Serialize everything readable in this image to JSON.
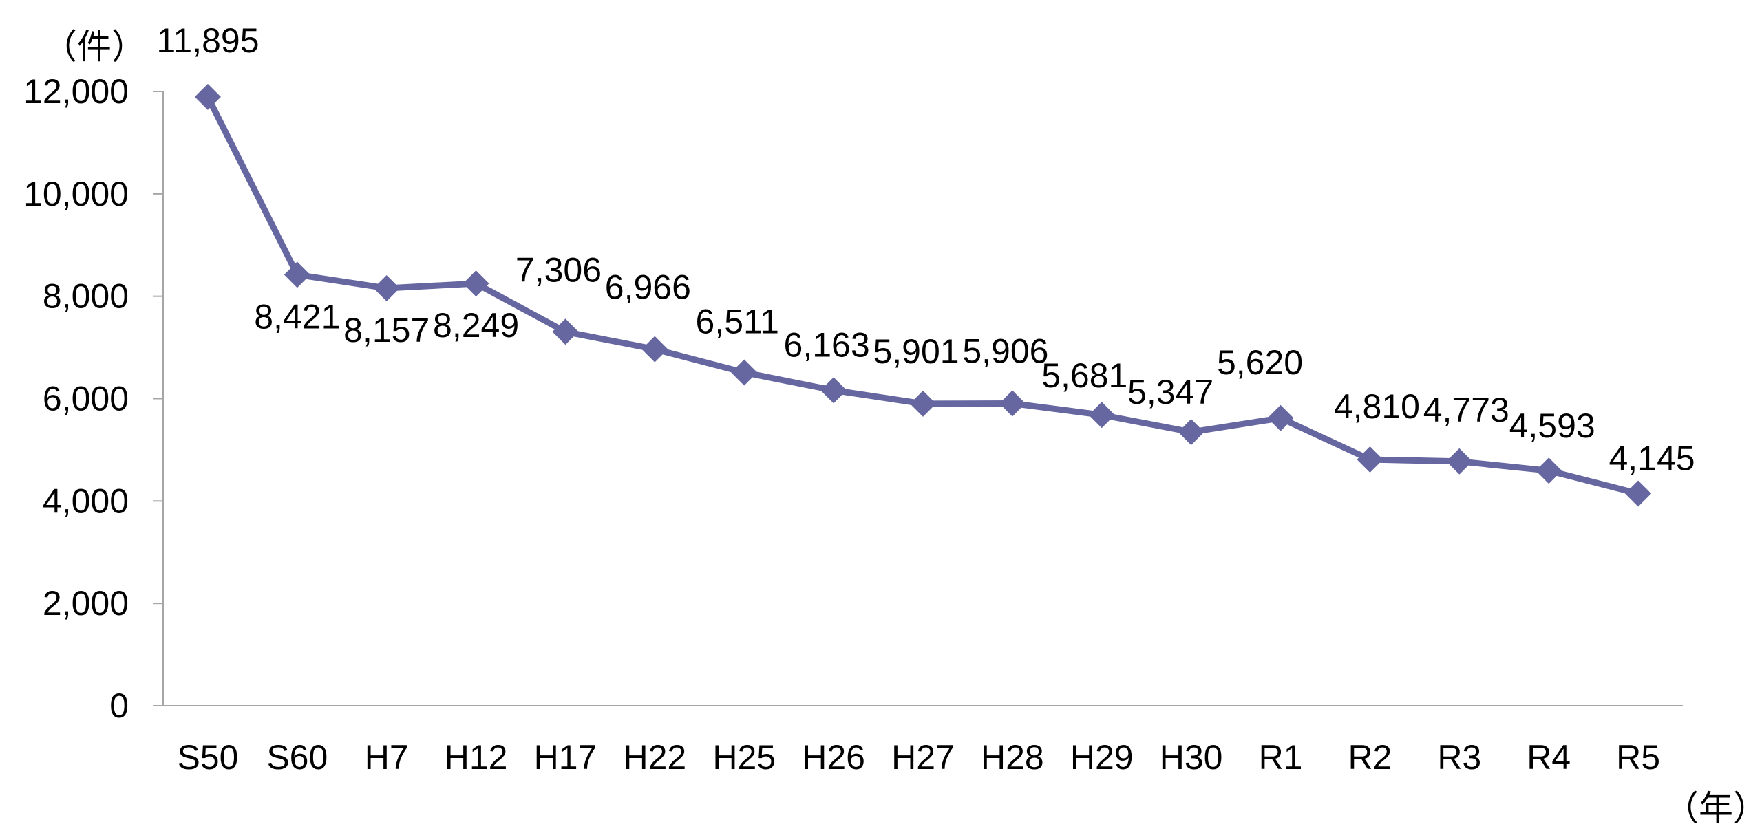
{
  "chart_data": {
    "type": "line",
    "categories": [
      "S50",
      "S60",
      "H7",
      "H12",
      "H17",
      "H22",
      "H25",
      "H26",
      "H27",
      "H28",
      "H29",
      "H30",
      "R1",
      "R2",
      "R3",
      "R4",
      "R5"
    ],
    "series": [
      {
        "values": [
          11895,
          8421,
          8157,
          8249,
          7306,
          6966,
          6511,
          6163,
          5901,
          5906,
          5681,
          5347,
          5620,
          4810,
          4773,
          4593,
          4145
        ],
        "value_labels": [
          "11,895",
          "8,421",
          "8,157",
          "8,249",
          "7,306",
          "6,966",
          "6,511",
          "6,163",
          "5,901",
          "5,906",
          "5,681",
          "5,347",
          "5,620",
          "4,810",
          "4,773",
          "4,593",
          "4,145"
        ],
        "color": "#6667a1",
        "marker": "diamond"
      }
    ],
    "ylim": [
      0,
      12000
    ],
    "yticks": [
      0,
      2000,
      4000,
      6000,
      8000,
      10000,
      12000
    ],
    "ytick_labels": [
      "0",
      "2,000",
      "4,000",
      "6,000",
      "8,000",
      "10,000",
      "12,000"
    ],
    "y_unit": "（件）",
    "x_unit": "（年）",
    "grid": false,
    "legend": "none"
  },
  "colors": {
    "series": "#6667a1",
    "axis": "#a6a6a6",
    "text": "#000000"
  }
}
